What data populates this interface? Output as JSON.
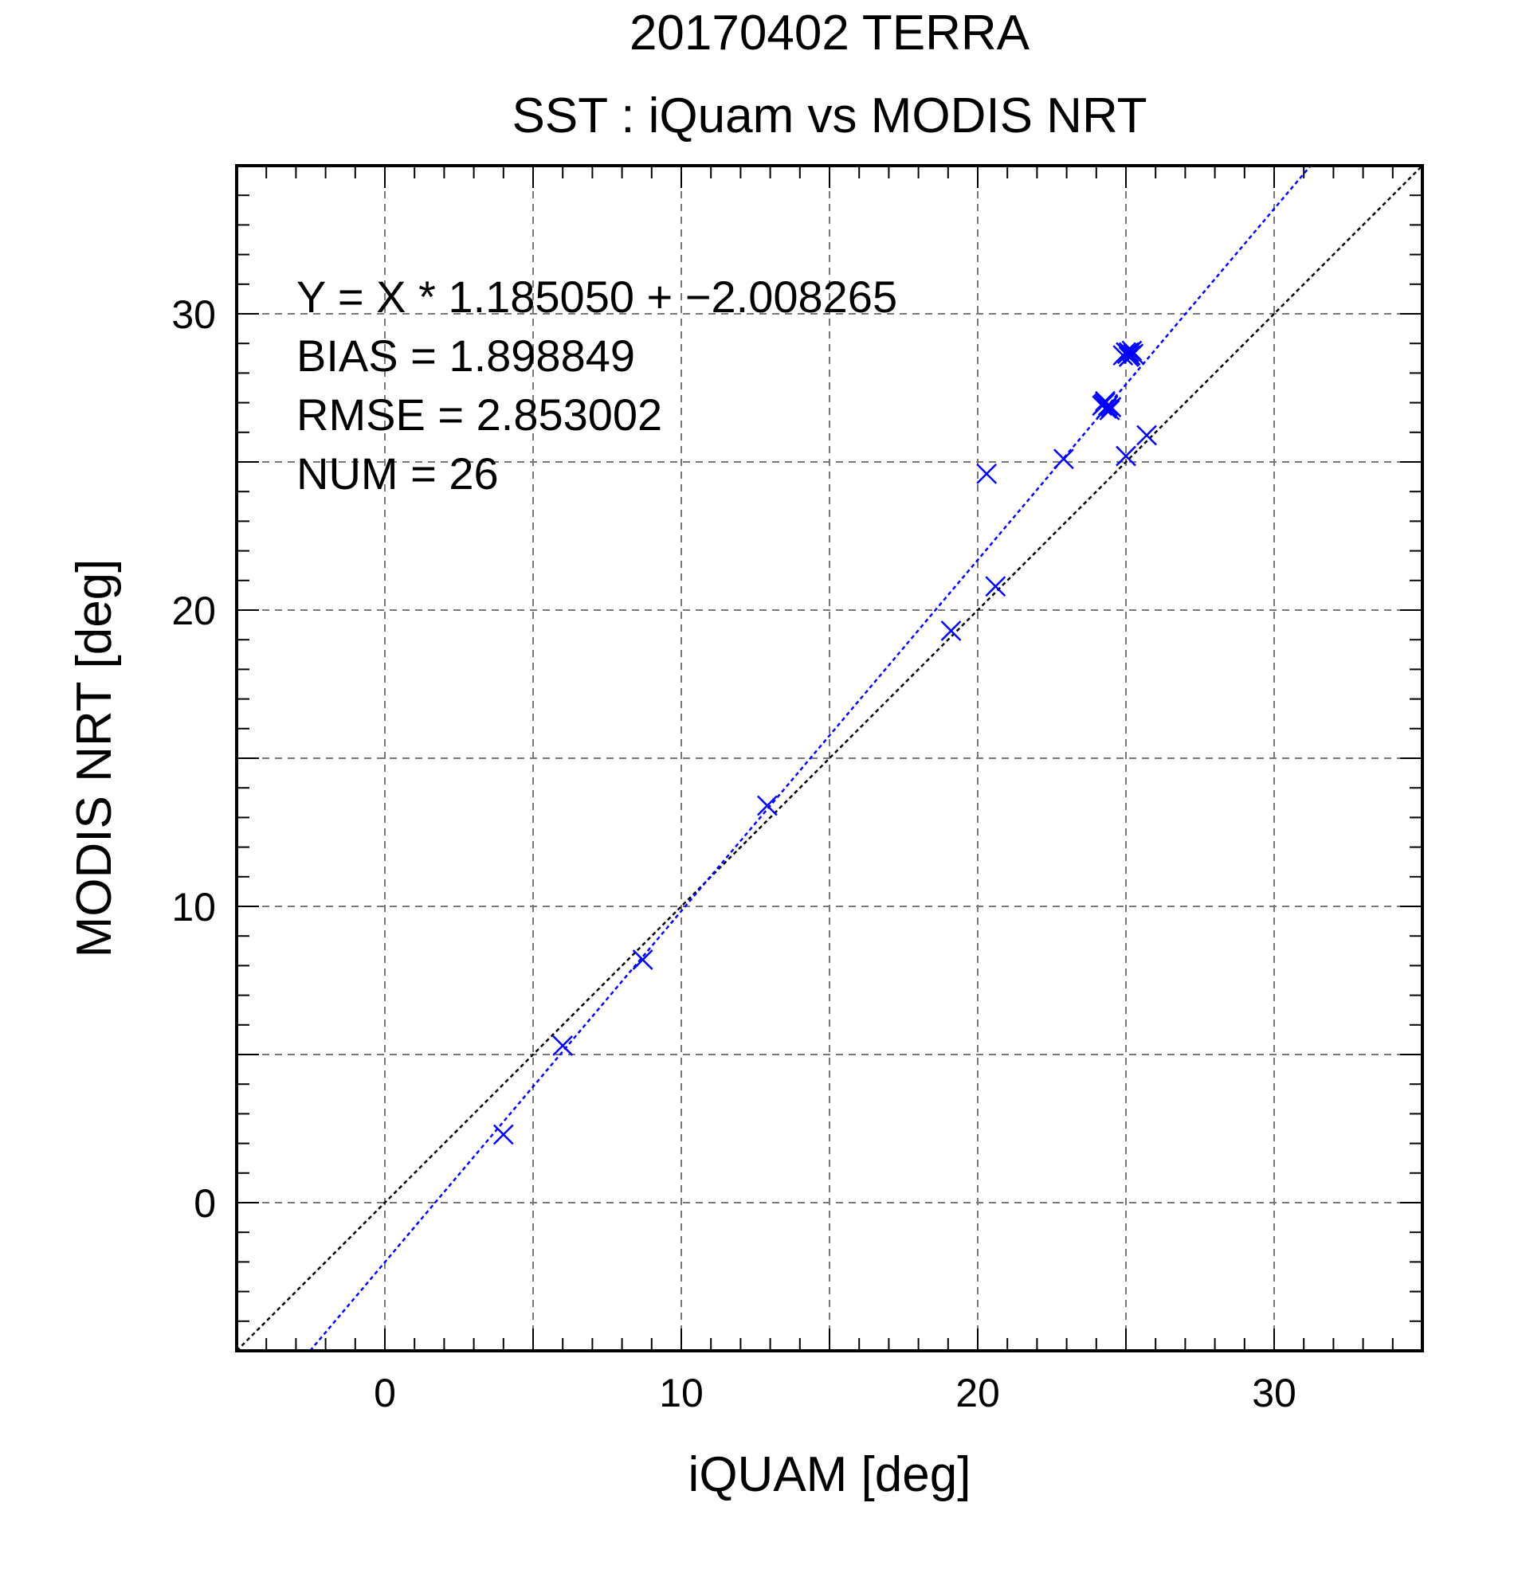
{
  "chart_data": {
    "type": "scatter",
    "title": "20170402 TERRA",
    "subtitle": "SST : iQuam vs MODIS NRT",
    "xlabel": "iQUAM [deg]",
    "ylabel": "MODIS NRT [deg]",
    "xlim": [
      -5,
      35
    ],
    "ylim": [
      -5,
      35
    ],
    "x_ticks": [
      0,
      10,
      20,
      30
    ],
    "y_ticks": [
      0,
      10,
      20,
      30
    ],
    "x_tick_labels": [
      "0",
      "10",
      "20",
      "30"
    ],
    "y_tick_labels": [
      "0",
      "10",
      "20",
      "30"
    ],
    "grid": true,
    "grid_major_step": 5,
    "minor_tick_step": 1,
    "marker": "x",
    "marker_color": "#0000ff",
    "series": [
      {
        "x": [
          4.0,
          6.0,
          8.7,
          12.9,
          19.1,
          20.3,
          20.6,
          22.9,
          24.2,
          24.3,
          24.35,
          24.4,
          24.5,
          24.3,
          24.25,
          24.45,
          24.9,
          25.0,
          25.05,
          25.1,
          25.15,
          25.2,
          25.1,
          25.25,
          25.7,
          25.0
        ],
        "y": [
          2.3,
          5.3,
          8.2,
          13.4,
          19.3,
          24.6,
          20.8,
          25.1,
          26.9,
          27.0,
          26.8,
          26.9,
          26.85,
          27.05,
          26.95,
          26.75,
          28.6,
          28.7,
          28.65,
          28.7,
          28.6,
          28.75,
          28.55,
          28.65,
          25.9,
          25.2
        ]
      }
    ],
    "lines": [
      {
        "kind": "identity",
        "slope": 1.0,
        "intercept": 0.0,
        "color": "#000000",
        "style": "dotted"
      },
      {
        "kind": "regression",
        "slope": 1.18505,
        "intercept": -2.008265,
        "color": "#0000ff",
        "style": "dotted"
      }
    ],
    "annotations": [
      "Y = X * 1.185050 + −2.008265",
      "BIAS = 1.898849",
      "RMSE = 2.853002",
      "NUM = 26"
    ]
  }
}
